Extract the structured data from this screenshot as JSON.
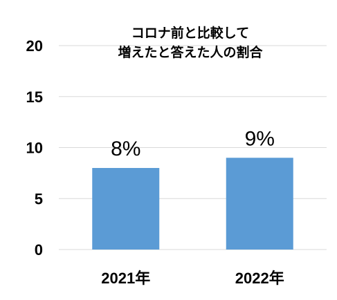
{
  "chart_data": {
    "type": "bar",
    "title_lines": [
      "コロナ前と比較して",
      "増えたと答えた人の割合"
    ],
    "categories": [
      "2021年",
      "2022年"
    ],
    "values": [
      8,
      9
    ],
    "data_labels": [
      "8%",
      "9%"
    ],
    "yticks": [
      "0",
      "5",
      "10",
      "15",
      "20"
    ],
    "ylim": [
      0,
      20
    ],
    "grid": true,
    "legend": "none",
    "colors": {
      "bar": "#5b9bd5",
      "grid": "#d9d9d9"
    }
  }
}
